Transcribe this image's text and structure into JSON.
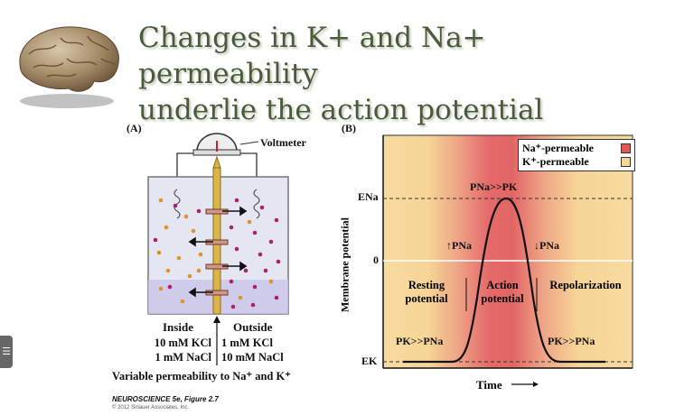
{
  "title": {
    "line1": "Changes in K+ and Na+ permeability",
    "line2": "underlie the action potential"
  },
  "panelA": {
    "label": "(A)",
    "voltmeter_label": "Voltmeter",
    "inside_header": "Inside",
    "outside_header": "Outside",
    "inside_kcl": "10 mM KCl",
    "inside_nacl": "1 mM NaCl",
    "outside_kcl": "1 mM KCl",
    "outside_nacl": "10 mM NaCl",
    "caption": "Variable permeability to Na⁺ and K⁺"
  },
  "panelB": {
    "label": "(B)",
    "y_axis_label": "Membrane potential",
    "x_axis_label": "Time",
    "tick_ena": "ENa",
    "tick_zero": "0",
    "tick_ek": "EK",
    "legend": {
      "na_label": "Na⁺-permeable",
      "k_label": "K⁺-permeable",
      "na_color": "#e05a5a",
      "k_color": "#f5d79a"
    },
    "phases": {
      "resting": "Resting potential",
      "action": "Action potential",
      "repolarization": "Repolarization"
    },
    "annotations": {
      "peak": "PNa>>PK",
      "up_pna": "↑PNa",
      "down_pna": "↓PNa",
      "left_pk": "PK>>PNa",
      "right_pk": "PK>>PNa"
    }
  },
  "credit": {
    "figure": "NEUROSCIENCE 5e, Figure 2.7",
    "copyright": "© 2012 Sinauer Associates, Inc."
  },
  "side_tab_icon": "menu-icon"
}
